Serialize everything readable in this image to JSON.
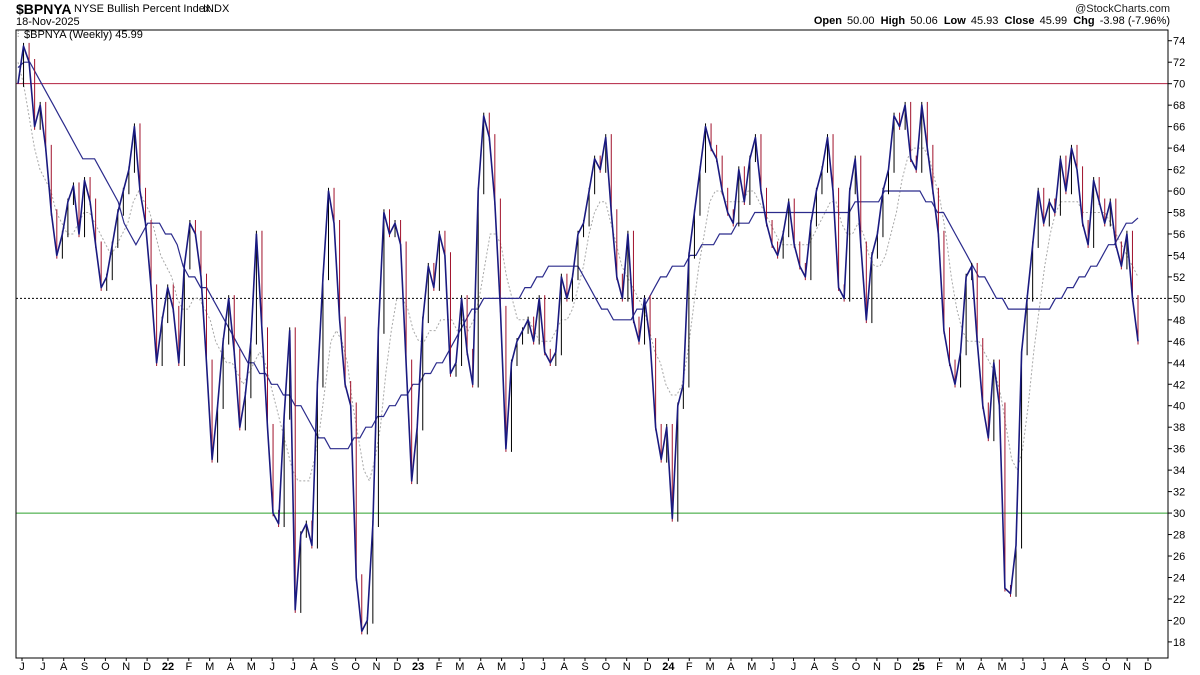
{
  "header": {
    "symbol": "$BPNYA",
    "name": "NYSE Bullish Percent Index",
    "exchange": "INDX",
    "date": "18-Nov-2025",
    "watermark": "@StockCharts.com",
    "open_label": "Open",
    "open_value": "50.00",
    "high_label": "High",
    "high_value": "50.06",
    "low_label": "Low",
    "low_value": "45.93",
    "close_label": "Close",
    "close_value": "45.99",
    "chg_label": "Chg",
    "chg_value": "-3.98 (-7.96%)"
  },
  "legend_text": "$BPNYA (Weekly) 45.99",
  "colors": {
    "price": "#1a1a80",
    "up_bar": "#000000",
    "down_bar": "#a0102a",
    "ma_slow": "#2b2b8c",
    "ma_fast": "#a8a8a8",
    "line_70": "#b22040",
    "line_30": "#2ca02c",
    "line_50": "#000000"
  },
  "chart_data": {
    "type": "line",
    "ylim": [
      16.5,
      75
    ],
    "y_ticks": [
      18,
      20,
      22,
      24,
      26,
      28,
      30,
      32,
      34,
      36,
      38,
      40,
      42,
      44,
      46,
      48,
      50,
      52,
      54,
      56,
      58,
      60,
      62,
      64,
      66,
      68,
      70,
      72,
      74
    ],
    "x_labels": [
      "J",
      "J",
      "A",
      "S",
      "O",
      "N",
      "D",
      "22",
      "F",
      "M",
      "A",
      "M",
      "J",
      "J",
      "A",
      "S",
      "O",
      "N",
      "D",
      "23",
      "F",
      "M",
      "A",
      "M",
      "J",
      "J",
      "A",
      "S",
      "O",
      "N",
      "D",
      "24",
      "F",
      "M",
      "A",
      "M",
      "J",
      "J",
      "A",
      "S",
      "O",
      "N",
      "D",
      "25",
      "F",
      "M",
      "A",
      "M",
      "J",
      "J",
      "A",
      "S",
      "O",
      "N",
      "D"
    ],
    "reference_lines": [
      70,
      50,
      30
    ],
    "series": [
      {
        "values": [
          70,
          73.5,
          72,
          66,
          68,
          64,
          58,
          54,
          56,
          59,
          60.5,
          56,
          61,
          59,
          55,
          51,
          52,
          55,
          58,
          60,
          62,
          66,
          60,
          57,
          51,
          44,
          48,
          51,
          49,
          44,
          53,
          57,
          56,
          52,
          44,
          35,
          40,
          46,
          50,
          45,
          38,
          41,
          46,
          56,
          47,
          38,
          30,
          29,
          39,
          47,
          21,
          28,
          29,
          27,
          42,
          52,
          60,
          57,
          48,
          42,
          40,
          24,
          19,
          20,
          29,
          47,
          58,
          56,
          57,
          55,
          44,
          33,
          38,
          48,
          53,
          51,
          56,
          54,
          43,
          44,
          50,
          45,
          42,
          60,
          67,
          65,
          59,
          49,
          36,
          44,
          46,
          47,
          48,
          46,
          50,
          45,
          44,
          45,
          52,
          50,
          52,
          56,
          57,
          60,
          63,
          62,
          65,
          58,
          52,
          50,
          56,
          48,
          46,
          50,
          46,
          38,
          35,
          38,
          29.5,
          40,
          42,
          54,
          58,
          62,
          66,
          64,
          63,
          60,
          58,
          57,
          62,
          59,
          63,
          65,
          60,
          57,
          55,
          54,
          56,
          59,
          55,
          53,
          52,
          57,
          60,
          62,
          65,
          60,
          51,
          50,
          60,
          63,
          55,
          48,
          54,
          56,
          60,
          62,
          67,
          66,
          68,
          63,
          62,
          68,
          64,
          60,
          56,
          47,
          44,
          42,
          45,
          52,
          53,
          46,
          40,
          37,
          44,
          40,
          23,
          22.5,
          27,
          45,
          50,
          55,
          60,
          57,
          59,
          58,
          63,
          60,
          64,
          62,
          57,
          55,
          61,
          59,
          57,
          59,
          55,
          53,
          56,
          50,
          46
        ]
      },
      {
        "values": [
          71.5,
          72,
          72,
          71,
          70,
          69,
          68,
          67,
          66,
          65,
          64,
          63,
          63,
          63,
          62,
          61,
          60,
          59,
          57,
          56,
          55,
          56,
          57,
          57,
          57,
          56,
          56,
          55,
          53,
          52,
          52,
          51,
          51,
          50,
          49,
          48,
          47,
          46,
          45,
          44,
          44,
          43,
          43,
          42,
          42,
          41,
          41,
          40,
          40,
          39,
          38,
          37,
          37,
          36,
          36,
          36,
          36,
          37,
          37,
          38,
          38,
          39,
          39,
          40,
          40,
          41,
          41,
          42,
          42,
          43,
          43,
          44,
          44,
          45,
          46,
          47,
          48,
          49,
          49,
          50,
          50,
          50,
          50,
          50,
          50,
          50,
          51,
          51,
          52,
          52,
          53,
          53,
          53,
          53,
          53,
          53,
          52,
          51,
          50,
          49,
          49,
          48,
          48,
          48,
          48,
          49,
          49,
          50,
          51,
          52,
          52,
          53,
          53,
          53,
          54,
          54,
          55,
          55,
          55,
          56,
          56,
          56,
          57,
          57,
          57,
          58,
          58,
          58,
          58,
          58,
          58,
          58,
          58,
          58,
          58,
          58,
          58,
          58,
          58,
          58,
          58,
          58,
          59,
          59,
          59,
          59,
          59,
          60,
          60,
          60,
          60,
          60,
          60,
          60,
          59,
          59,
          58,
          58,
          57,
          56,
          55,
          54,
          53,
          52,
          52,
          51,
          50,
          50,
          49,
          49,
          49,
          49,
          49,
          49,
          49,
          49,
          50,
          50,
          51,
          51,
          52,
          52,
          53,
          53,
          54,
          55,
          55,
          56,
          57,
          57,
          57.5
        ]
      },
      {
        "values": [
          72,
          70,
          67,
          64,
          62,
          61,
          60,
          58,
          57,
          56,
          56,
          57,
          58,
          58,
          57,
          56,
          55,
          54,
          55,
          56,
          57,
          59,
          60,
          59,
          58,
          56,
          54,
          53,
          52,
          50,
          49,
          49,
          50,
          50,
          49,
          48,
          46,
          45,
          44,
          44,
          43,
          42,
          43,
          44,
          45,
          44,
          42,
          40,
          38,
          36,
          34,
          33,
          33,
          33,
          35,
          38,
          42,
          46,
          47,
          46,
          44,
          40,
          37,
          34,
          33,
          35,
          38,
          43,
          47,
          50,
          50,
          49,
          47,
          46,
          46,
          47,
          47,
          48,
          48,
          48,
          47,
          48,
          47,
          48,
          50,
          53,
          56,
          56,
          55,
          52,
          50,
          48,
          48,
          48,
          47,
          46,
          46,
          46,
          47,
          48,
          48,
          49,
          51,
          53,
          56,
          58,
          59,
          59,
          57,
          55,
          53,
          52,
          51,
          50,
          49,
          47,
          45,
          44,
          42,
          41,
          41,
          42,
          45,
          49,
          53,
          56,
          59,
          60,
          60,
          59,
          59,
          59,
          59,
          60,
          60,
          59,
          58,
          57,
          56,
          55,
          55,
          55,
          55,
          55,
          55,
          56,
          57,
          58,
          59,
          59,
          57,
          56,
          56,
          57,
          56,
          54,
          53,
          53,
          54,
          56,
          58,
          61,
          63,
          64,
          64,
          64,
          63,
          61,
          59,
          56,
          52,
          49,
          47,
          46,
          46,
          46,
          45,
          44,
          43,
          41,
          38,
          35,
          34,
          36,
          40,
          45,
          49,
          53,
          56,
          58,
          59,
          59,
          59,
          59,
          58,
          58,
          58,
          58,
          58,
          57,
          56,
          55,
          54,
          53,
          52
        ]
      }
    ]
  }
}
